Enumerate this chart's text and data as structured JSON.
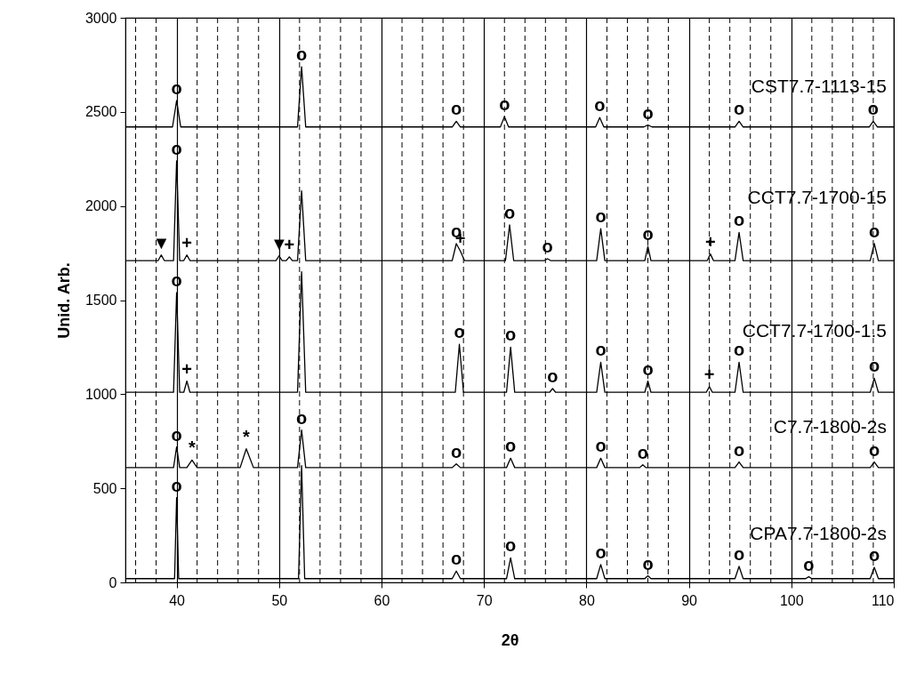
{
  "chart_data": {
    "type": "line",
    "xlabel": "2θ",
    "ylabel": "Unid. Arb.",
    "xlim": [
      35,
      110
    ],
    "xticks": [
      40,
      50,
      60,
      70,
      80,
      90,
      100,
      110
    ],
    "ylim": [
      0,
      3000
    ],
    "yticks": [
      0,
      500,
      1000,
      1500,
      2000,
      2500,
      3000
    ],
    "grid": "x",
    "marker": "none",
    "series": [
      {
        "name": "CST7.7-1113-15",
        "color": "#000000",
        "x": [
          35,
          39.6,
          40,
          40.4,
          51.8,
          52.2,
          52.6,
          66.9,
          67.3,
          67.7,
          71.6,
          72,
          72.4,
          80.9,
          81.3,
          81.7,
          85.6,
          86,
          86.4,
          94.5,
          94.9,
          95.3,
          107.6,
          108,
          108.4,
          110
        ],
        "values": [
          2420,
          2420,
          2560,
          2420,
          2420,
          2740,
          2420,
          2420,
          2450,
          2420,
          2420,
          2475,
          2420,
          2420,
          2470,
          2420,
          2420,
          2430,
          2420,
          2420,
          2450,
          2420,
          2420,
          2450,
          2420,
          2420
        ]
      },
      {
        "name": "CCT7.7-1700-15",
        "color": "#000000",
        "x": [
          35,
          38.2,
          38.5,
          38.8,
          39.7,
          40,
          40.3,
          40.7,
          41,
          41.3,
          49.7,
          50,
          50.3,
          50.7,
          51,
          51.3,
          51.8,
          52.2,
          52.6,
          66.9,
          67.3,
          67.7,
          68.1,
          72.1,
          72.5,
          72.9,
          75.9,
          76.2,
          76.5,
          81,
          81.4,
          81.8,
          85.7,
          86,
          86.3,
          91.8,
          92.1,
          92.4,
          94.5,
          94.9,
          95.3,
          107.7,
          108.1,
          108.5,
          110
        ],
        "values": [
          1710,
          1710,
          1740,
          1710,
          1710,
          2240,
          1710,
          1710,
          1740,
          1710,
          1710,
          1735,
          1710,
          1710,
          1730,
          1710,
          1710,
          2080,
          1710,
          1710,
          1800,
          1760,
          1710,
          1710,
          1900,
          1710,
          1710,
          1720,
          1710,
          1710,
          1880,
          1710,
          1710,
          1785,
          1710,
          1710,
          1745,
          1710,
          1710,
          1860,
          1710,
          1710,
          1800,
          1710,
          1710
        ]
      },
      {
        "name": "CCT7.7-1700-1.5",
        "color": "#000000",
        "x": [
          35,
          39.7,
          40,
          40.3,
          40.7,
          41,
          41.3,
          51.8,
          52.2,
          52.6,
          67.2,
          67.6,
          68,
          72.2,
          72.6,
          73,
          76.4,
          76.7,
          77,
          81,
          81.4,
          81.8,
          85.7,
          86,
          86.3,
          91.7,
          92,
          92.3,
          94.5,
          94.9,
          95.3,
          107.7,
          108.1,
          108.5,
          110
        ],
        "values": [
          1010,
          1010,
          1540,
          1010,
          1010,
          1070,
          1010,
          1010,
          1650,
          1010,
          1010,
          1265,
          1010,
          1010,
          1250,
          1010,
          1010,
          1030,
          1010,
          1010,
          1170,
          1010,
          1010,
          1070,
          1010,
          1010,
          1040,
          1010,
          1010,
          1170,
          1010,
          1010,
          1085,
          1010,
          1010
        ]
      },
      {
        "name": "C7.7-1800-2s",
        "color": "#000000",
        "x": [
          35,
          39.7,
          40,
          40.3,
          41,
          41.5,
          42,
          46.2,
          46.8,
          47.5,
          51.8,
          52.2,
          52.6,
          66.9,
          67.3,
          67.7,
          72.2,
          72.6,
          73,
          81,
          81.4,
          81.8,
          85.2,
          85.5,
          85.8,
          94.5,
          94.9,
          95.3,
          107.7,
          108.1,
          108.5,
          110
        ],
        "values": [
          610,
          610,
          720,
          610,
          610,
          650,
          610,
          610,
          710,
          610,
          610,
          810,
          610,
          610,
          630,
          610,
          610,
          660,
          610,
          610,
          660,
          610,
          610,
          625,
          610,
          610,
          640,
          610,
          610,
          640,
          610,
          610
        ]
      },
      {
        "name": "CPA7.7-1800-2s",
        "color": "#000000",
        "x": [
          35,
          39.8,
          40,
          40.2,
          51.9,
          52.2,
          52.5,
          66.9,
          67.3,
          67.7,
          72.2,
          72.6,
          73,
          81,
          81.4,
          81.8,
          85.7,
          86,
          86.3,
          94.5,
          94.9,
          95.3,
          101.4,
          101.7,
          102,
          107.7,
          108.1,
          108.5,
          110
        ],
        "values": [
          20,
          20,
          450,
          20,
          20,
          620,
          20,
          20,
          60,
          20,
          20,
          130,
          20,
          20,
          95,
          20,
          20,
          35,
          20,
          20,
          85,
          20,
          20,
          30,
          20,
          20,
          80,
          20,
          20
        ]
      }
    ],
    "ref_lines": [
      {
        "axis": "x",
        "value": 36,
        "line_style": "dashed",
        "color": "#000000"
      },
      {
        "axis": "x",
        "value": 38,
        "line_style": "dashed",
        "color": "#000000"
      },
      {
        "axis": "x",
        "value": 42,
        "line_style": "dashed",
        "color": "#000000"
      },
      {
        "axis": "x",
        "value": 44,
        "line_style": "dashed",
        "color": "#000000"
      },
      {
        "axis": "x",
        "value": 46,
        "line_style": "dashed",
        "color": "#000000"
      },
      {
        "axis": "x",
        "value": 48,
        "line_style": "dashed",
        "color": "#000000"
      },
      {
        "axis": "x",
        "value": 52,
        "line_style": "dashed",
        "color": "#000000"
      },
      {
        "axis": "x",
        "value": 54,
        "line_style": "dashed",
        "color": "#000000"
      },
      {
        "axis": "x",
        "value": 56,
        "line_style": "dashed",
        "color": "#000000"
      },
      {
        "axis": "x",
        "value": 58,
        "line_style": "dashed",
        "color": "#000000"
      },
      {
        "axis": "x",
        "value": 62,
        "line_style": "dashed",
        "color": "#000000"
      },
      {
        "axis": "x",
        "value": 64,
        "line_style": "dashed",
        "color": "#000000"
      },
      {
        "axis": "x",
        "value": 66,
        "line_style": "dashed",
        "color": "#000000"
      },
      {
        "axis": "x",
        "value": 68,
        "line_style": "dashed",
        "color": "#000000"
      },
      {
        "axis": "x",
        "value": 72,
        "line_style": "dashed",
        "color": "#000000"
      },
      {
        "axis": "x",
        "value": 74,
        "line_style": "dashed",
        "color": "#000000"
      },
      {
        "axis": "x",
        "value": 76,
        "line_style": "dashed",
        "color": "#000000"
      },
      {
        "axis": "x",
        "value": 78,
        "line_style": "dashed",
        "color": "#000000"
      },
      {
        "axis": "x",
        "value": 82,
        "line_style": "dashed",
        "color": "#000000"
      },
      {
        "axis": "x",
        "value": 84,
        "line_style": "dashed",
        "color": "#000000"
      },
      {
        "axis": "x",
        "value": 86,
        "line_style": "dashed",
        "color": "#000000"
      },
      {
        "axis": "x",
        "value": 88,
        "line_style": "dashed",
        "color": "#000000"
      },
      {
        "axis": "x",
        "value": 92,
        "line_style": "dashed",
        "color": "#000000"
      },
      {
        "axis": "x",
        "value": 94,
        "line_style": "dashed",
        "color": "#000000"
      },
      {
        "axis": "x",
        "value": 96,
        "line_style": "dashed",
        "color": "#000000"
      },
      {
        "axis": "x",
        "value": 98,
        "line_style": "dashed",
        "color": "#000000"
      },
      {
        "axis": "x",
        "value": 102,
        "line_style": "dashed",
        "color": "#000000"
      },
      {
        "axis": "x",
        "value": 104,
        "line_style": "dashed",
        "color": "#000000"
      },
      {
        "axis": "x",
        "value": 106,
        "line_style": "dashed",
        "color": "#000000"
      },
      {
        "axis": "x",
        "value": 108,
        "line_style": "dashed",
        "color": "#000000"
      }
    ],
    "annotations": [
      {
        "text": "o",
        "x": 40,
        "y": 2560
      },
      {
        "text": "o",
        "x": 52.2,
        "y": 2740
      },
      {
        "text": "o",
        "x": 67.3,
        "y": 2450
      },
      {
        "text": "o",
        "x": 72,
        "y": 2475
      },
      {
        "text": "o",
        "x": 81.3,
        "y": 2470
      },
      {
        "text": "o",
        "x": 86,
        "y": 2430
      },
      {
        "text": "o",
        "x": 94.9,
        "y": 2450
      },
      {
        "text": "o",
        "x": 108,
        "y": 2450
      },
      {
        "text": "▼",
        "x": 38.5,
        "y": 1740
      },
      {
        "text": "+",
        "x": 41,
        "y": 1740
      },
      {
        "text": "o",
        "x": 40,
        "y": 2240
      },
      {
        "text": "▼",
        "x": 50,
        "y": 1735
      },
      {
        "text": "+",
        "x": 51,
        "y": 1730
      },
      {
        "text": "o",
        "x": 67.3,
        "y": 1800
      },
      {
        "text": "+",
        "x": 67.7,
        "y": 1760
      },
      {
        "text": "o",
        "x": 72.5,
        "y": 1900
      },
      {
        "text": "o",
        "x": 76.2,
        "y": 1720
      },
      {
        "text": "o",
        "x": 81.4,
        "y": 1880
      },
      {
        "text": "o",
        "x": 86,
        "y": 1785
      },
      {
        "text": "+",
        "x": 92.1,
        "y": 1745
      },
      {
        "text": "o",
        "x": 94.9,
        "y": 1860
      },
      {
        "text": "o",
        "x": 108.1,
        "y": 1800
      },
      {
        "text": "o",
        "x": 40,
        "y": 1540
      },
      {
        "text": "+",
        "x": 41,
        "y": 1070
      },
      {
        "text": "o",
        "x": 67.6,
        "y": 1265
      },
      {
        "text": "o",
        "x": 72.6,
        "y": 1250
      },
      {
        "text": "o",
        "x": 76.7,
        "y": 1030
      },
      {
        "text": "o",
        "x": 81.4,
        "y": 1170
      },
      {
        "text": "o",
        "x": 86,
        "y": 1070
      },
      {
        "text": "+",
        "x": 92,
        "y": 1040
      },
      {
        "text": "o",
        "x": 94.9,
        "y": 1170
      },
      {
        "text": "o",
        "x": 108.1,
        "y": 1085
      },
      {
        "text": "o",
        "x": 40,
        "y": 720
      },
      {
        "text": "*",
        "x": 41.5,
        "y": 650
      },
      {
        "text": "*",
        "x": 46.8,
        "y": 710
      },
      {
        "text": "o",
        "x": 52.2,
        "y": 810
      },
      {
        "text": "o",
        "x": 67.3,
        "y": 630
      },
      {
        "text": "o",
        "x": 72.6,
        "y": 660
      },
      {
        "text": "o",
        "x": 81.4,
        "y": 660
      },
      {
        "text": "o",
        "x": 85.5,
        "y": 625
      },
      {
        "text": "o",
        "x": 94.9,
        "y": 640
      },
      {
        "text": "o",
        "x": 108.1,
        "y": 640
      },
      {
        "text": "o",
        "x": 40,
        "y": 450
      },
      {
        "text": "o",
        "x": 67.3,
        "y": 60
      },
      {
        "text": "o",
        "x": 72.6,
        "y": 130
      },
      {
        "text": "o",
        "x": 81.4,
        "y": 95
      },
      {
        "text": "o",
        "x": 86,
        "y": 35
      },
      {
        "text": "o",
        "x": 94.9,
        "y": 85
      },
      {
        "text": "o",
        "x": 101.7,
        "y": 30
      },
      {
        "text": "o",
        "x": 108.1,
        "y": 80
      }
    ]
  }
}
